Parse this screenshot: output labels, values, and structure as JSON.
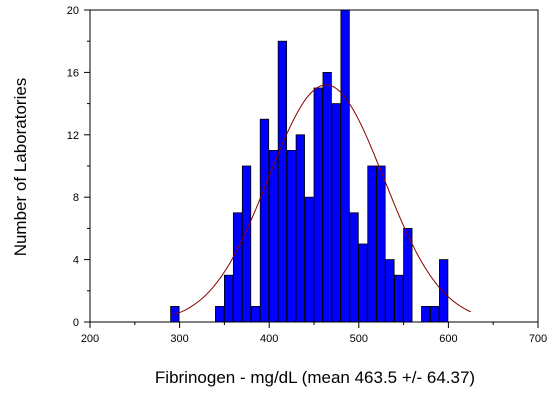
{
  "chart_data": {
    "type": "bar",
    "title": "",
    "xlabel": "Fibrinogen - mg/dL (mean 463.5 +/- 64.37)",
    "ylabel": "Number of Laboratories",
    "xlim": [
      200,
      700
    ],
    "ylim": [
      0,
      20
    ],
    "x_ticks": [
      200,
      300,
      400,
      500,
      600,
      700
    ],
    "y_ticks": [
      0,
      4,
      8,
      12,
      16,
      20
    ],
    "bin_width": 10,
    "bins": [
      {
        "x": 295,
        "count": 1
      },
      {
        "x": 345,
        "count": 1
      },
      {
        "x": 355,
        "count": 3
      },
      {
        "x": 365,
        "count": 7
      },
      {
        "x": 375,
        "count": 10
      },
      {
        "x": 385,
        "count": 1
      },
      {
        "x": 395,
        "count": 13
      },
      {
        "x": 405,
        "count": 11
      },
      {
        "x": 415,
        "count": 18
      },
      {
        "x": 425,
        "count": 11
      },
      {
        "x": 435,
        "count": 12
      },
      {
        "x": 445,
        "count": 8
      },
      {
        "x": 455,
        "count": 15
      },
      {
        "x": 465,
        "count": 16
      },
      {
        "x": 475,
        "count": 14
      },
      {
        "x": 485,
        "count": 20
      },
      {
        "x": 495,
        "count": 7
      },
      {
        "x": 505,
        "count": 5
      },
      {
        "x": 515,
        "count": 10
      },
      {
        "x": 525,
        "count": 10
      },
      {
        "x": 535,
        "count": 4
      },
      {
        "x": 545,
        "count": 3
      },
      {
        "x": 555,
        "count": 6
      },
      {
        "x": 575,
        "count": 1
      },
      {
        "x": 585,
        "count": 1
      },
      {
        "x": 595,
        "count": 4
      }
    ],
    "fit_curve": {
      "type": "normal",
      "mean": 463.5,
      "sd": 64.37,
      "peak": 15.2
    },
    "colors": {
      "bar_fill": "#0000ff",
      "bar_stroke": "#000000",
      "curve": "#8b0000"
    }
  }
}
